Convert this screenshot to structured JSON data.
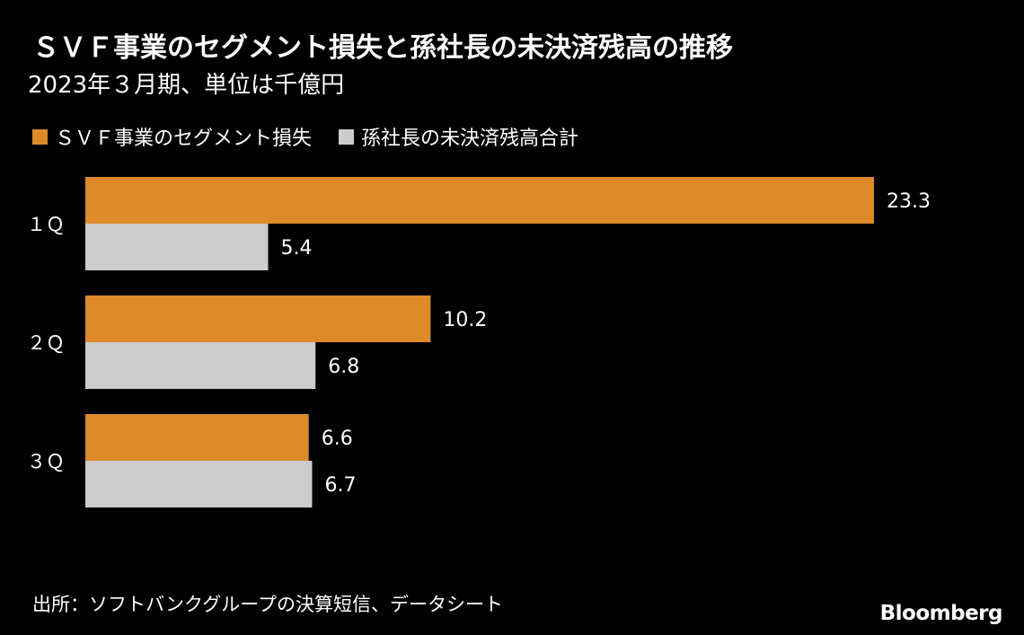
{
  "title": "ＳＶＦ事業のセグメント損失と孫社長の未決済残高の推移",
  "subtitle": "2023年３月期、単位は千億円",
  "source": "出所：ソフトバンクグループの決算短信、データシート",
  "logo": "Bloomberg",
  "colors": {
    "background": "#000000",
    "svf_loss": "#dd8a28",
    "son_unsettled": "#cccccc",
    "text": "#ffffff"
  },
  "chart_data": {
    "type": "bar",
    "orientation": "horizontal",
    "categories": [
      "１Ｑ",
      "２Ｑ",
      "３Ｑ"
    ],
    "series": [
      {
        "name": "ＳＶＦ事業のセグメント損失",
        "values": [
          23.3,
          10.2,
          6.6
        ],
        "color": "#dd8a28"
      },
      {
        "name": "孫社長の未決済残高合計",
        "values": [
          5.4,
          6.8,
          6.7
        ],
        "color": "#cccccc"
      }
    ],
    "data_labels": [
      [
        "23.3",
        "10.2",
        "6.6"
      ],
      [
        "5.4",
        "6.8",
        "6.7"
      ]
    ],
    "xlim": [
      0,
      23.3
    ],
    "grid": false,
    "legend_position": "top-left"
  }
}
